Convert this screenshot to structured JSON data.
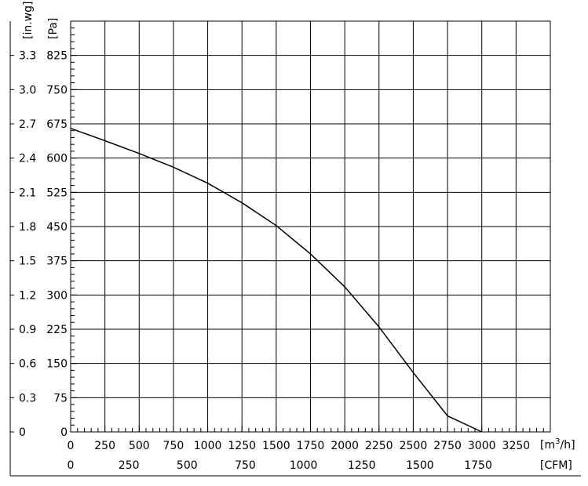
{
  "chart_data": {
    "type": "line",
    "title": "",
    "y_axes": {
      "left_unit_label": "[in.wg]",
      "right_unit_label": "[Pa]",
      "left_ticks": [
        "0",
        "0.3",
        "0.6",
        "0.9",
        "1.2",
        "1.5",
        "1.8",
        "2.1",
        "2.4",
        "2.7",
        "3.0",
        "3.3"
      ],
      "right_ticks": [
        "0",
        "75",
        "150",
        "225",
        "300",
        "375",
        "450",
        "525",
        "600",
        "675",
        "750",
        "825"
      ],
      "ylim": [
        0,
        900
      ],
      "major_step": 75,
      "minor_step": 15
    },
    "x_axes": {
      "primary_unit_label_main": "[m",
      "primary_unit_label_sup": "3",
      "primary_unit_label_tail": "/h]",
      "secondary_unit_label": "[CFM]",
      "primary_ticks": [
        "0",
        "250",
        "500",
        "750",
        "1000",
        "1250",
        "1500",
        "1750",
        "2000",
        "2250",
        "2500",
        "2750",
        "3000",
        "3250"
      ],
      "secondary_ticks": [
        "0",
        "250",
        "500",
        "750",
        "1000",
        "1250",
        "1500",
        "1750"
      ],
      "secondary_tick_values_m3h": [
        0,
        424.75,
        849.5,
        1274.25,
        1699,
        2123.75,
        2548.5,
        2973.25
      ],
      "xlim": [
        0,
        3500
      ],
      "major_step": 250,
      "minor_step": 50
    },
    "grid": true,
    "series": [
      {
        "x": [
          0,
          250,
          500,
          750,
          1000,
          1250,
          1500,
          1750,
          2000,
          2250,
          2500,
          2750,
          3000
        ],
        "y": [
          665,
          638,
          610,
          580,
          545,
          502,
          452,
          390,
          318,
          230,
          130,
          35,
          0
        ]
      }
    ]
  },
  "style": {
    "line_color": "#000000",
    "grid_color": "#000000",
    "background": "#ffffff"
  }
}
